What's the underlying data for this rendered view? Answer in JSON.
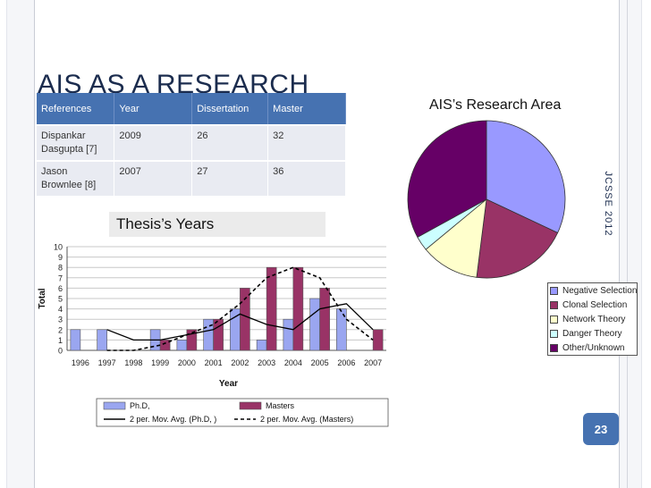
{
  "slide": {
    "title": "AIS AS A RESEARCH",
    "thesis_caption": "Thesis’s Years",
    "pie_title": "AIS’s Research Area",
    "side_label": "JCSSE 2012",
    "page_number": "23"
  },
  "references_table": {
    "headers": [
      "References",
      "Year",
      "Dissertation",
      "Master"
    ],
    "rows": [
      [
        "Dispankar Dasgupta [7]",
        "2009",
        "26",
        "32"
      ],
      [
        "Jason Brownlee [8]",
        "2007",
        "27",
        "36"
      ]
    ]
  },
  "chart_data": [
    {
      "type": "bar",
      "title": "",
      "xlabel": "Year",
      "ylabel": "Total",
      "ylim": [
        0,
        10
      ],
      "grid": true,
      "legend_position": "bottom",
      "categories": [
        "1996",
        "1997",
        "1998",
        "1999",
        "2000",
        "2001",
        "2002",
        "2003",
        "2004",
        "2005",
        "2006",
        "2007"
      ],
      "yticks": [
        "0",
        "1",
        "2",
        "3",
        "4",
        "5",
        "6",
        "7",
        "8",
        "9",
        "10"
      ],
      "series": [
        {
          "name": "Ph.D,",
          "color": "#9aa6f0",
          "values": [
            2,
            2,
            0,
            2,
            1,
            3,
            4,
            1,
            3,
            5,
            4,
            0
          ]
        },
        {
          "name": "Masters",
          "color": "#993366",
          "values": [
            0,
            0,
            0,
            1,
            2,
            3,
            6,
            8,
            8,
            6,
            0,
            2
          ]
        }
      ],
      "trendlines": [
        {
          "name": "2 per. Mov. Avg. (Ph.D, )",
          "style": "solid",
          "values": [
            null,
            2,
            1,
            1,
            1.5,
            2,
            3.5,
            2.5,
            2,
            4,
            4.5,
            2
          ]
        },
        {
          "name": "2 per. Mov. Avg. (Masters)",
          "style": "dashed",
          "values": [
            null,
            0,
            0,
            0.5,
            1.5,
            2.5,
            4.5,
            7,
            8,
            7,
            3,
            1
          ]
        }
      ]
    },
    {
      "type": "pie",
      "title": "AIS’s Research Area",
      "legend_position": "right",
      "slices": [
        {
          "label": "Negative Selection",
          "value": 32,
          "color": "#9999ff"
        },
        {
          "label": "Clonal Selection",
          "value": 20,
          "color": "#993366"
        },
        {
          "label": "Network Theory",
          "value": 12,
          "color": "#ffffcc"
        },
        {
          "label": "Danger Theory",
          "value": 3,
          "color": "#ccffff"
        },
        {
          "label": "Other/Unknown",
          "value": 33,
          "color": "#660066"
        }
      ]
    }
  ]
}
